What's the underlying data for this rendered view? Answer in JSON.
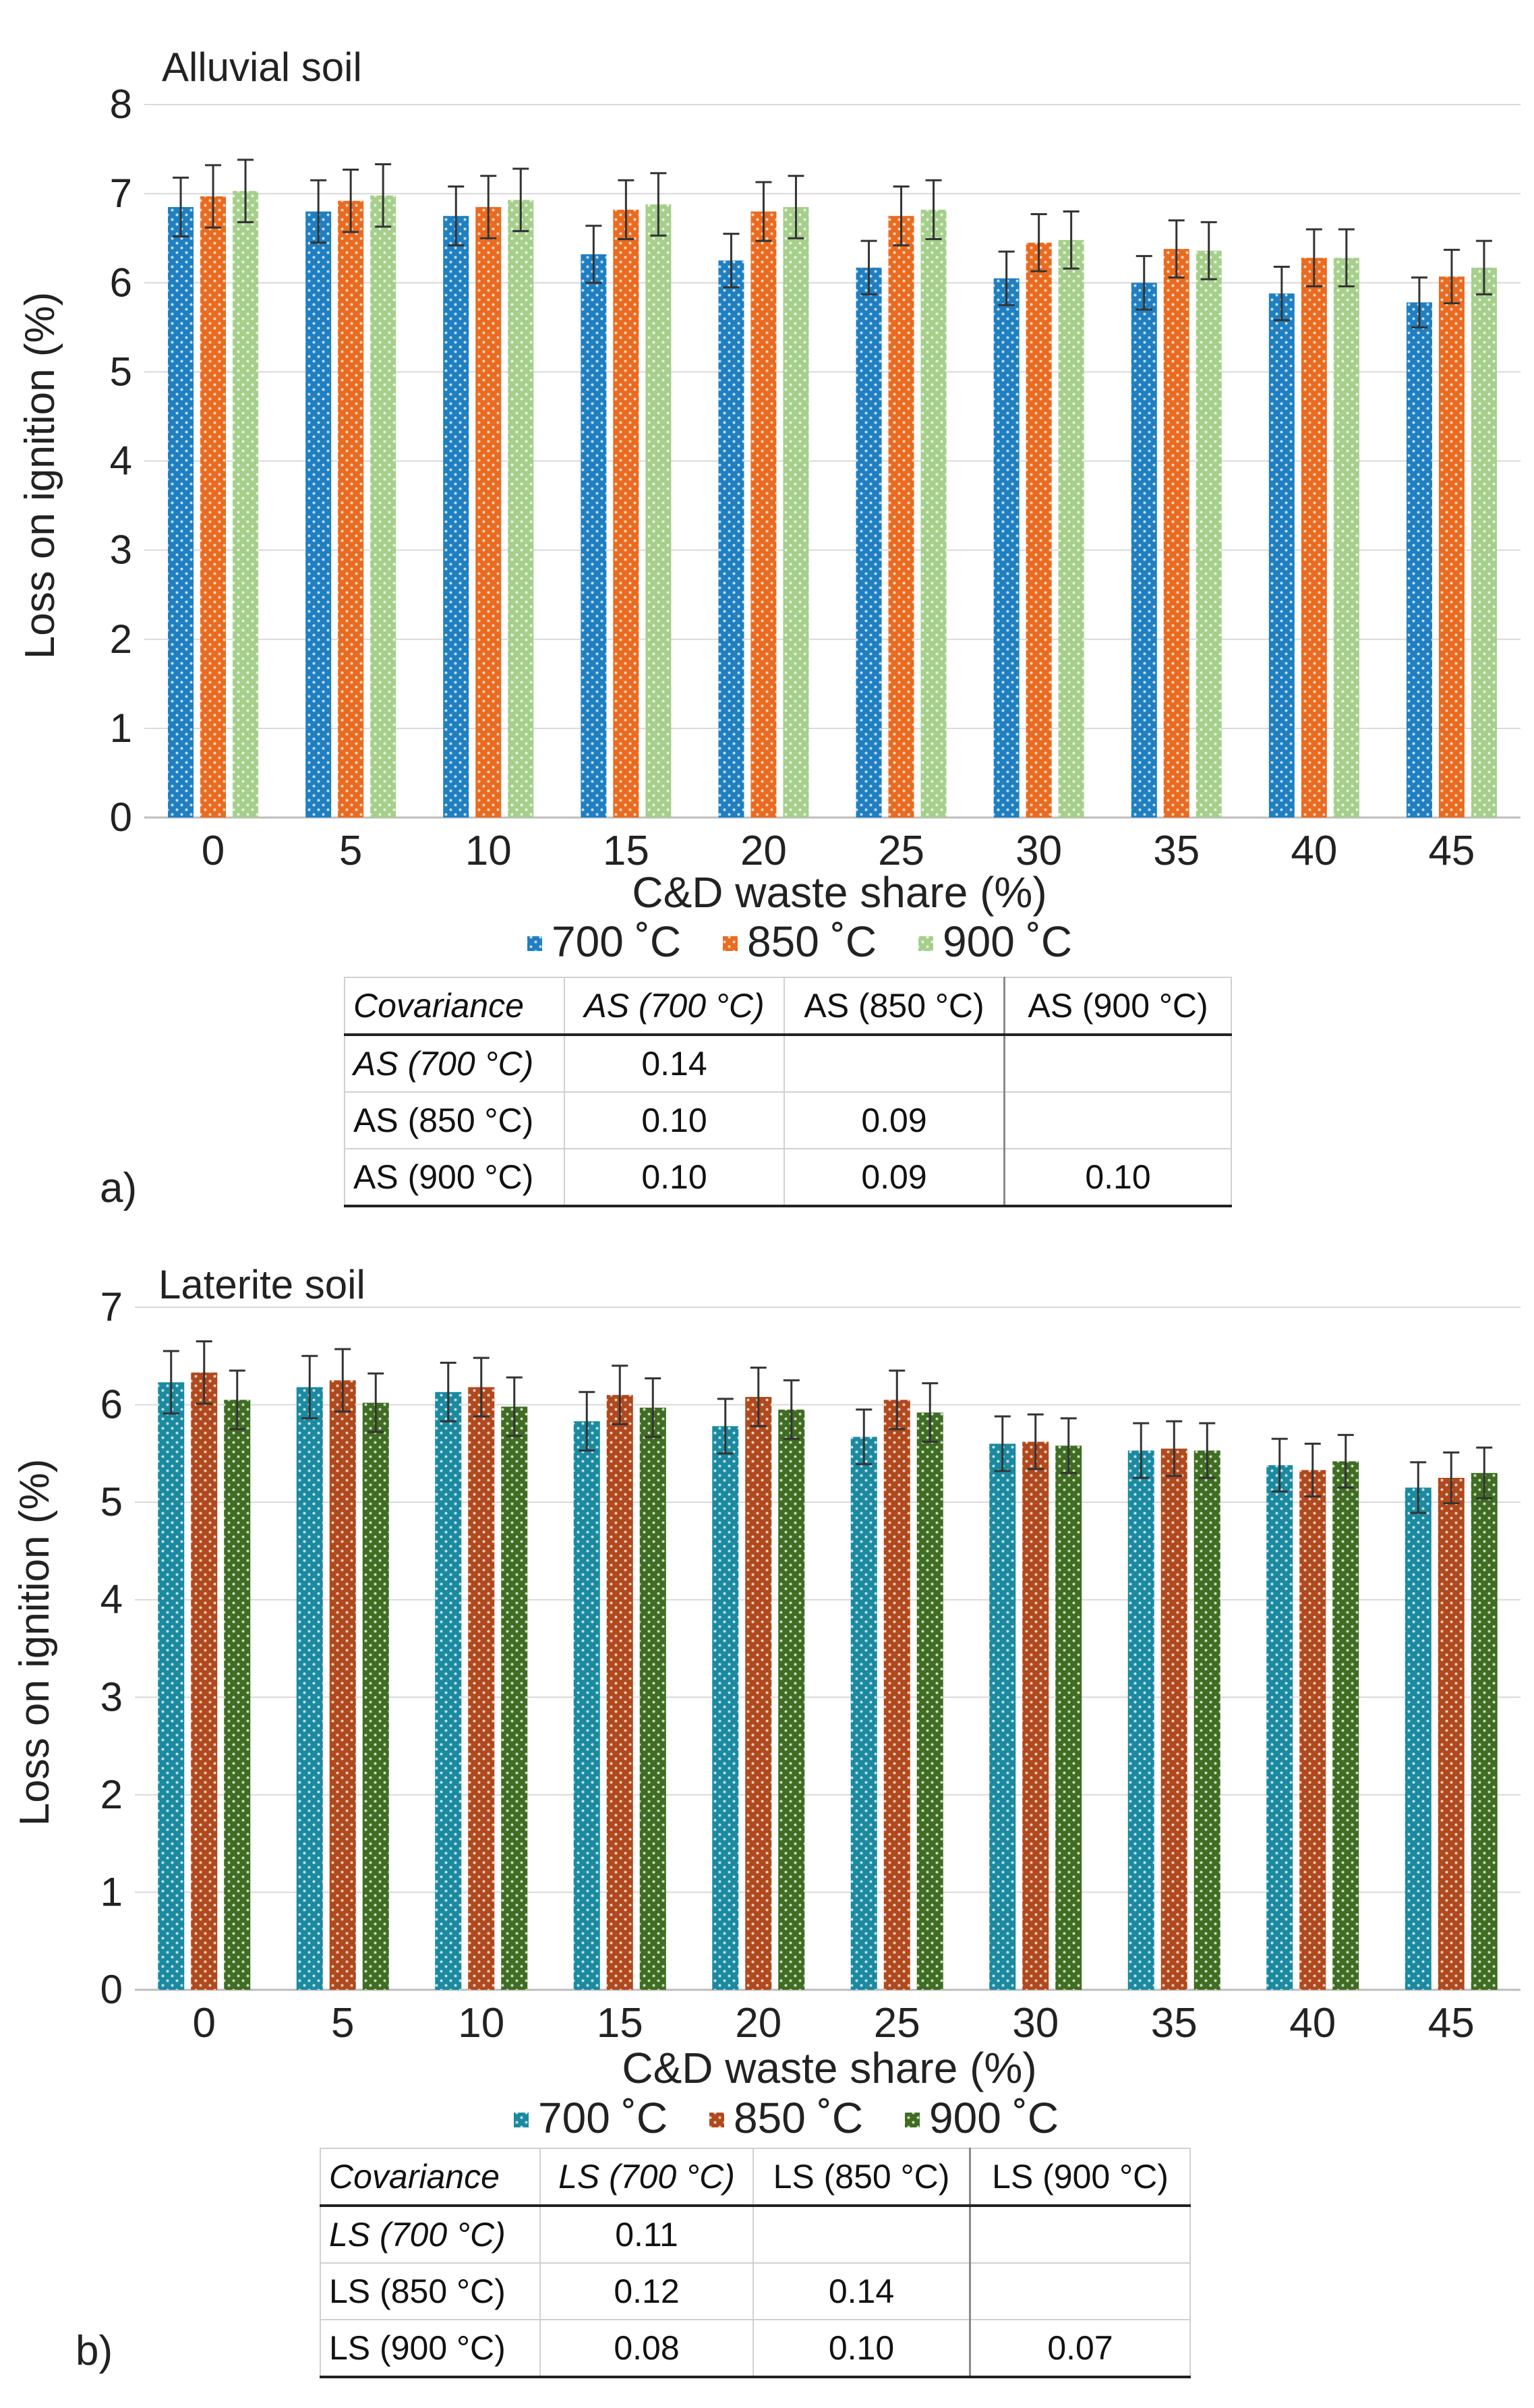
{
  "chart_data": [
    {
      "type": "bar",
      "panel_label": "a)",
      "title": "Alluvial soil",
      "xlabel": "C&D waste share (%)",
      "ylabel": "Loss on ignition (%)",
      "ylim": [
        0,
        8
      ],
      "yticks": [
        "0",
        "1",
        "2",
        "3",
        "4",
        "5",
        "6",
        "7",
        "8"
      ],
      "grid": true,
      "legend_position": "bottom",
      "categories": [
        "0",
        "5",
        "10",
        "15",
        "20",
        "25",
        "30",
        "35",
        "40",
        "45"
      ],
      "series": [
        {
          "name": "700 ˚C",
          "color": "#1f7fc1",
          "values": [
            6.85,
            6.8,
            6.75,
            6.32,
            6.25,
            6.17,
            6.05,
            6.0,
            5.88,
            5.78
          ],
          "errors": [
            0.33,
            0.35,
            0.33,
            0.32,
            0.3,
            0.3,
            0.3,
            0.3,
            0.3,
            0.28
          ]
        },
        {
          "name": "850 ˚C",
          "color": "#ea6b20",
          "values": [
            6.97,
            6.92,
            6.85,
            6.82,
            6.8,
            6.75,
            6.45,
            6.38,
            6.28,
            6.07
          ],
          "errors": [
            0.35,
            0.35,
            0.35,
            0.33,
            0.33,
            0.33,
            0.32,
            0.32,
            0.32,
            0.3
          ]
        },
        {
          "name": "900 ˚C",
          "color": "#a6cf8c",
          "values": [
            7.03,
            6.98,
            6.93,
            6.88,
            6.85,
            6.82,
            6.48,
            6.36,
            6.28,
            6.17
          ],
          "errors": [
            0.35,
            0.35,
            0.35,
            0.35,
            0.35,
            0.33,
            0.32,
            0.32,
            0.32,
            0.3
          ]
        }
      ],
      "covariance_table": {
        "header": [
          "Covariance",
          "AS (700 °C)",
          "AS (850 °C)",
          "AS (900 °C)"
        ],
        "rows": [
          [
            "AS (700 °C)",
            "0.14",
            "",
            ""
          ],
          [
            "AS (850 °C)",
            "0.10",
            "0.09",
            ""
          ],
          [
            "AS (900 °C)",
            "0.10",
            "0.09",
            "0.10"
          ]
        ]
      }
    },
    {
      "type": "bar",
      "panel_label": "b)",
      "title": "Laterite soil",
      "xlabel": "C&D waste share (%)",
      "ylabel": "Loss on ignition (%)",
      "ylim": [
        0,
        7
      ],
      "yticks": [
        "0",
        "1",
        "2",
        "3",
        "4",
        "5",
        "6",
        "7"
      ],
      "grid": true,
      "legend_position": "bottom",
      "categories": [
        "0",
        "5",
        "10",
        "15",
        "20",
        "25",
        "30",
        "35",
        "40",
        "45"
      ],
      "series": [
        {
          "name": "700 ˚C",
          "color": "#1b8aa0",
          "values": [
            6.23,
            6.18,
            6.13,
            5.83,
            5.78,
            5.67,
            5.6,
            5.53,
            5.38,
            5.15
          ],
          "errors": [
            0.32,
            0.32,
            0.3,
            0.3,
            0.28,
            0.28,
            0.28,
            0.28,
            0.27,
            0.26
          ]
        },
        {
          "name": "850 ˚C",
          "color": "#b0491d",
          "values": [
            6.33,
            6.25,
            6.18,
            6.1,
            6.08,
            6.05,
            5.62,
            5.55,
            5.33,
            5.25
          ],
          "errors": [
            0.32,
            0.32,
            0.3,
            0.3,
            0.3,
            0.3,
            0.28,
            0.28,
            0.27,
            0.26
          ]
        },
        {
          "name": "900 ˚C",
          "color": "#3f6d22",
          "values": [
            6.05,
            6.02,
            5.98,
            5.97,
            5.95,
            5.92,
            5.58,
            5.53,
            5.42,
            5.3
          ],
          "errors": [
            0.3,
            0.3,
            0.3,
            0.3,
            0.3,
            0.3,
            0.28,
            0.28,
            0.27,
            0.26
          ]
        }
      ],
      "covariance_table": {
        "header": [
          "Covariance",
          "LS (700 °C)",
          "LS (850 °C)",
          "LS (900 °C)"
        ],
        "rows": [
          [
            "LS (700 °C)",
            "0.11",
            "",
            ""
          ],
          [
            "LS (850 °C)",
            "0.12",
            "0.14",
            ""
          ],
          [
            "LS (900 °C)",
            "0.08",
            "0.10",
            "0.07"
          ]
        ]
      }
    }
  ]
}
